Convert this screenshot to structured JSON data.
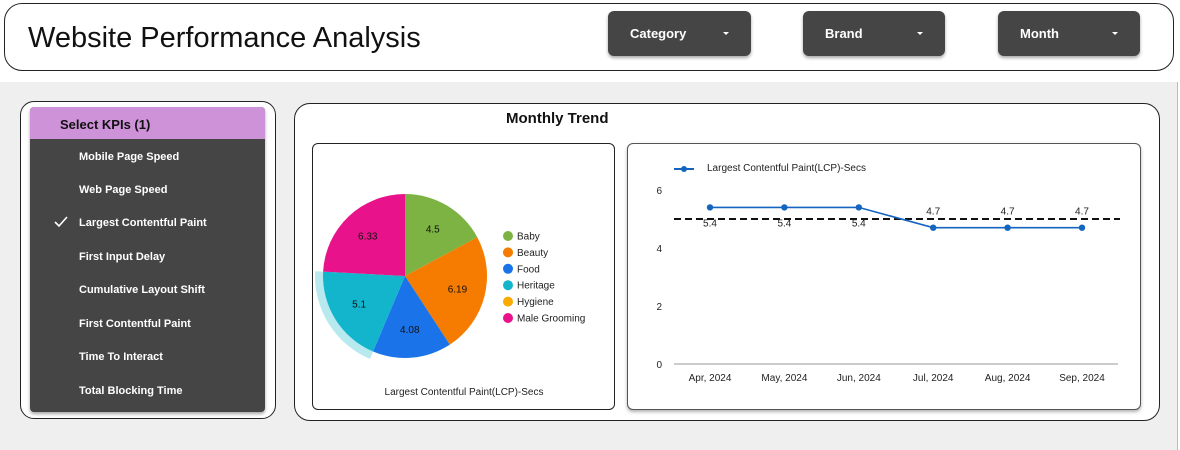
{
  "header": {
    "title": "Website Performance Analysis",
    "filters": [
      {
        "label": "Category"
      },
      {
        "label": "Brand"
      },
      {
        "label": "Month"
      }
    ]
  },
  "kpi_panel": {
    "heading": "Select KPIs (1)",
    "items": [
      {
        "label": "Mobile Page Speed",
        "selected": false
      },
      {
        "label": "Web Page Speed",
        "selected": false
      },
      {
        "label": "Largest Contentful Paint",
        "selected": true
      },
      {
        "label": "First Input Delay",
        "selected": false
      },
      {
        "label": "Cumulative Layout Shift",
        "selected": false
      },
      {
        "label": "First Contentful Paint",
        "selected": false
      },
      {
        "label": "Time To Interact",
        "selected": false
      },
      {
        "label": "Total Blocking Time",
        "selected": false
      }
    ],
    "colors": {
      "panel": "#454545",
      "heading": "#ce92d8"
    }
  },
  "trend": {
    "title": "Monthly Trend"
  },
  "chart_data": [
    {
      "type": "pie",
      "xlabel": "Largest Contentful Paint(LCP)-Secs",
      "legend_position": "right",
      "slices": [
        {
          "label": "Baby",
          "value": 4.5,
          "color": "#7cb342"
        },
        {
          "label": "Beauty",
          "value": 6.19,
          "color": "#f57c00"
        },
        {
          "label": "Food",
          "value": 4.08,
          "color": "#1a73e8"
        },
        {
          "label": "Heritage",
          "value": 5.1,
          "color": "#12b5cb"
        },
        {
          "label": "Hygiene",
          "value": null,
          "color": "#f9ab00"
        },
        {
          "label": "Male Grooming",
          "value": 6.33,
          "color": "#e8138a"
        }
      ],
      "highlighted": "Heritage"
    },
    {
      "type": "line",
      "categories": [
        "Apr, 2024",
        "May, 2024",
        "Jun, 2024",
        "Jul, 2024",
        "Aug, 2024",
        "Sep, 2024"
      ],
      "series": [
        {
          "name": "Largest Contentful Paint(LCP)-Secs",
          "values": [
            5.4,
            5.4,
            5.4,
            4.7,
            4.7,
            4.7
          ],
          "color": "#1565c0"
        }
      ],
      "reference_line": 5,
      "ylim": [
        0,
        6
      ],
      "yticks": [
        0,
        2,
        4,
        6
      ],
      "legend_position": "top-left",
      "grid": false
    }
  ]
}
